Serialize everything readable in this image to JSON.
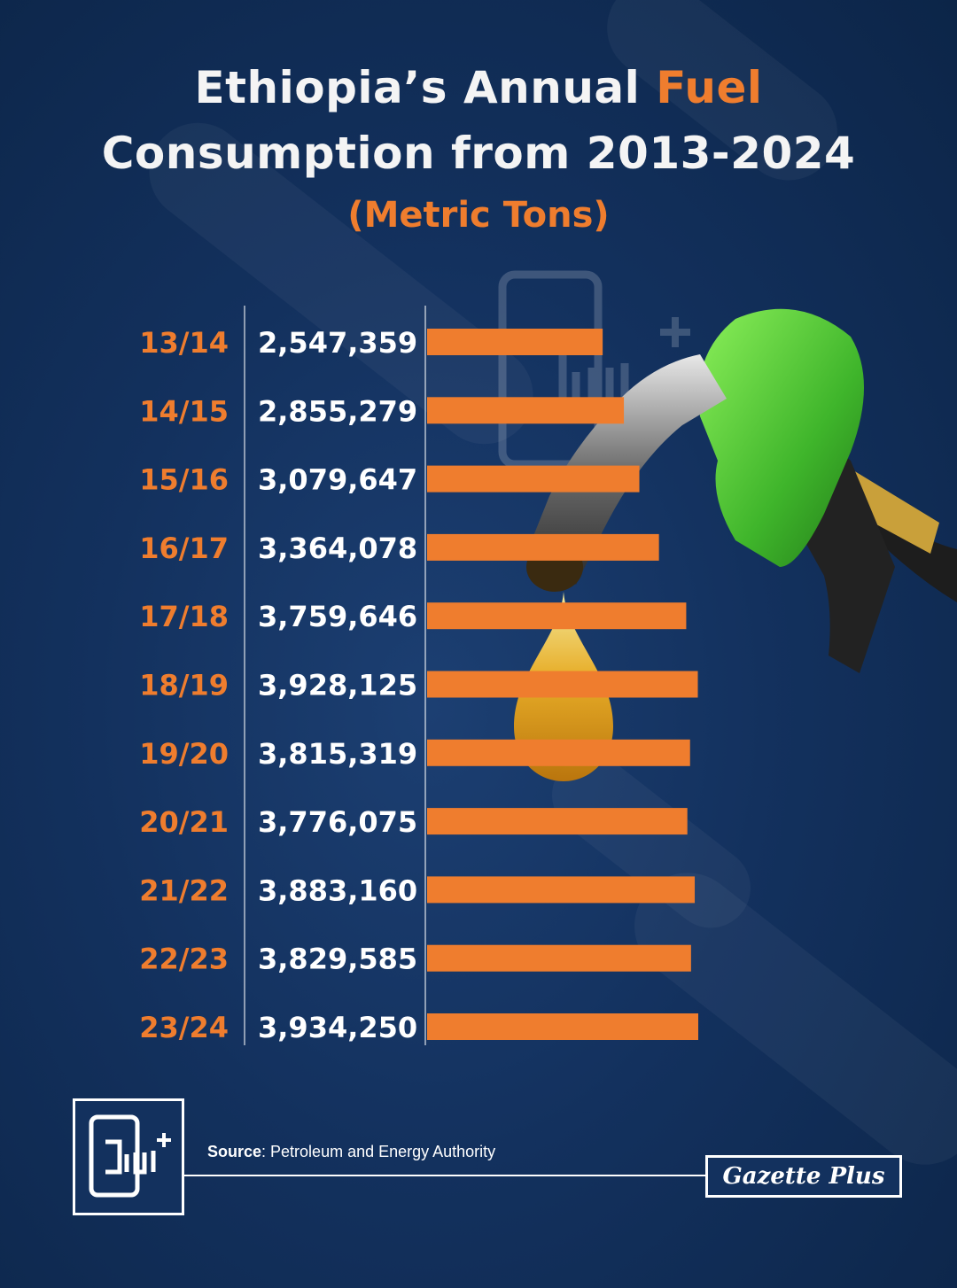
{
  "title": {
    "line1_prefix": "Ethiopia’s Annual ",
    "line1_accent": "Fuel",
    "line2": "Consumption from 2013-2024"
  },
  "subtitle": "(Metric Tons)",
  "chart_data": {
    "type": "bar",
    "orientation": "horizontal",
    "title": "Ethiopia’s Annual Fuel Consumption from 2013-2024",
    "subtitle": "(Metric Tons)",
    "categories": [
      "13/14",
      "14/15",
      "15/16",
      "16/17",
      "17/18",
      "18/19",
      "19/20",
      "20/21",
      "21/22",
      "22/23",
      "23/24"
    ],
    "values": [
      2547359,
      2855279,
      3079647,
      3364078,
      3759646,
      3928125,
      3815319,
      3776075,
      3883160,
      3829585,
      3934250
    ],
    "value_labels": [
      "2,547,359",
      "2,855,279",
      "3,079,647",
      "3,364,078",
      "3,759,646",
      "3,928,125",
      "3,815,319",
      "3,776,075",
      "3,883,160",
      "3,829,585",
      "3,934,250"
    ],
    "xlim": [
      0,
      3934250
    ],
    "grid": false,
    "bar_color": "#ef7d2e",
    "category_color": "#ef7d2e",
    "value_color": "#ffffff"
  },
  "footer": {
    "source_label": "Source",
    "source_text": ": Petroleum and Energy Authority",
    "brand": "Gazette Plus"
  },
  "colors": {
    "background": "#13315e",
    "accent": "#ef7d2e",
    "text": "#ffffff"
  },
  "decorations": {
    "nozzle_icon": "fuel-nozzle-icon",
    "drop_icon": "fuel-drop-icon",
    "logo_icon": "tablet-logo-icon"
  }
}
